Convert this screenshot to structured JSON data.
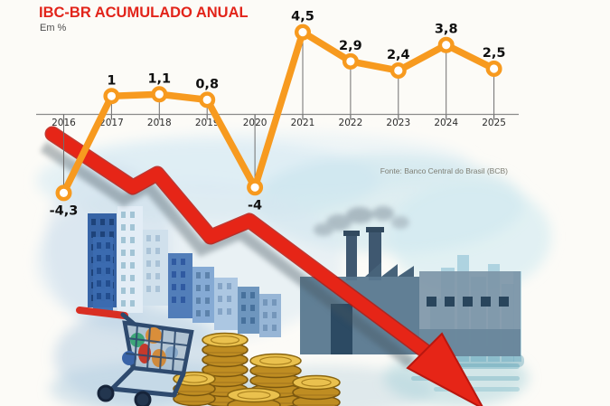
{
  "header": {
    "title": "IBC-BR ACUMULADO ANUAL",
    "subtitle": "Em %"
  },
  "source_note": "Fonte: Banco Central do Brasil (BCB)",
  "chart_data": {
    "type": "line",
    "title": "IBC-BR ACUMULADO ANUAL",
    "ylabel": "Em %",
    "categories": [
      "2016",
      "2017",
      "2018",
      "2019",
      "2020",
      "2021",
      "2022",
      "2023",
      "2024",
      "2025"
    ],
    "series": [
      {
        "name": "IBC-BR acumulado anual (%)",
        "values": [
          -4.3,
          1,
          1.1,
          0.8,
          -4,
          4.5,
          2.9,
          2.4,
          3.8,
          2.5
        ],
        "display_labels": [
          "-4,3",
          "1",
          "1,1",
          "0,8",
          "-4",
          "4,5",
          "2,9",
          "2,4",
          "3,8",
          "2,5"
        ]
      }
    ],
    "ylim": [
      -5,
      5
    ],
    "grid": false,
    "legend": false,
    "marker_style": "open-circle",
    "line_color": "#F79A1F",
    "source": "Fonte: Banco Central do Brasil (BCB)"
  },
  "colors": {
    "title_red": "#E2241A",
    "line_orange": "#F79A1F",
    "arrow_red": "#E62517",
    "axis_gray": "#8A8A8A",
    "label_black": "#101010"
  }
}
